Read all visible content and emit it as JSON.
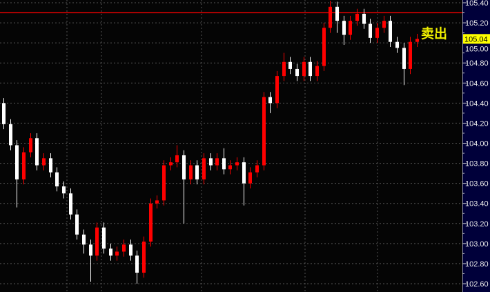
{
  "chart_data": {
    "type": "candlestick",
    "title": "",
    "xlabel": "",
    "ylabel": "",
    "ylim": [
      102.6,
      105.4
    ],
    "yticks": [
      "102.60",
      "102.80",
      "103.00",
      "103.20",
      "103.40",
      "103.60",
      "103.80",
      "104.00",
      "104.20",
      "104.40",
      "104.60",
      "104.80",
      "105.00",
      "105.20",
      "105.40"
    ],
    "grid": true,
    "colors": {
      "up": "#ff0000",
      "down": "#ffffff",
      "background": "#050505",
      "axis_panel": "#00003a",
      "grid": "#555555",
      "level_line": "#ff0000",
      "price_tag": "#ffff00",
      "signal_text": "#f0f000"
    },
    "level_line": 105.3,
    "last_price": "105.04",
    "signal_label": "卖出",
    "candles_ohlc": [
      [
        104.4,
        104.45,
        104.14,
        104.19
      ],
      [
        104.19,
        104.24,
        103.93,
        103.98
      ],
      [
        103.98,
        104.03,
        103.36,
        103.64
      ],
      [
        103.64,
        103.96,
        103.59,
        103.91
      ],
      [
        103.91,
        104.1,
        103.86,
        104.05
      ],
      [
        104.05,
        104.1,
        103.73,
        103.78
      ],
      [
        103.78,
        103.9,
        103.73,
        103.85
      ],
      [
        103.85,
        103.9,
        103.66,
        103.71
      ],
      [
        103.71,
        103.76,
        103.52,
        103.57
      ],
      [
        103.57,
        103.62,
        103.45,
        103.5
      ],
      [
        103.5,
        103.55,
        103.24,
        103.29
      ],
      [
        103.29,
        103.34,
        103.04,
        103.09
      ],
      [
        103.09,
        103.14,
        102.9,
        102.99
      ],
      [
        102.99,
        103.04,
        102.62,
        102.88
      ],
      [
        102.88,
        103.21,
        102.83,
        103.16
      ],
      [
        103.16,
        103.21,
        102.9,
        102.95
      ],
      [
        102.95,
        103.0,
        102.83,
        102.88
      ],
      [
        102.88,
        102.97,
        102.83,
        102.92
      ],
      [
        102.92,
        103.04,
        102.87,
        102.99
      ],
      [
        102.99,
        103.04,
        102.83,
        102.88
      ],
      [
        102.88,
        102.93,
        102.6,
        102.71
      ],
      [
        102.71,
        103.07,
        102.66,
        103.02
      ],
      [
        103.02,
        103.45,
        102.97,
        103.4
      ],
      [
        103.4,
        103.48,
        103.35,
        103.43
      ],
      [
        103.43,
        103.83,
        103.38,
        103.78
      ],
      [
        103.78,
        103.86,
        103.73,
        103.81
      ],
      [
        103.81,
        103.98,
        103.76,
        103.88
      ],
      [
        103.88,
        103.93,
        103.2,
        103.64
      ],
      [
        103.64,
        103.83,
        103.59,
        103.78
      ],
      [
        103.78,
        103.83,
        103.59,
        103.64
      ],
      [
        103.64,
        103.9,
        103.59,
        103.85
      ],
      [
        103.85,
        103.9,
        103.73,
        103.78
      ],
      [
        103.78,
        103.9,
        103.73,
        103.85
      ],
      [
        103.85,
        103.95,
        103.69,
        103.74
      ],
      [
        103.74,
        103.83,
        103.69,
        103.78
      ],
      [
        103.78,
        103.86,
        103.73,
        103.81
      ],
      [
        103.81,
        103.86,
        103.38,
        103.6
      ],
      [
        103.6,
        103.76,
        103.55,
        103.71
      ],
      [
        103.71,
        103.83,
        103.66,
        103.78
      ],
      [
        103.78,
        104.51,
        103.73,
        104.46
      ],
      [
        104.46,
        104.51,
        104.3,
        104.4
      ],
      [
        104.4,
        104.72,
        104.35,
        104.67
      ],
      [
        104.67,
        104.9,
        104.62,
        104.81
      ],
      [
        104.81,
        104.86,
        104.69,
        104.74
      ],
      [
        104.74,
        104.79,
        104.62,
        104.67
      ],
      [
        104.67,
        104.86,
        104.62,
        104.81
      ],
      [
        104.81,
        104.86,
        104.62,
        104.67
      ],
      [
        104.67,
        104.82,
        104.62,
        104.77
      ],
      [
        104.77,
        105.2,
        104.72,
        105.15
      ],
      [
        105.15,
        105.42,
        105.1,
        105.36
      ],
      [
        105.36,
        105.41,
        105.1,
        105.22
      ],
      [
        105.22,
        105.27,
        104.98,
        105.08
      ],
      [
        105.08,
        105.27,
        105.03,
        105.22
      ],
      [
        105.22,
        105.34,
        105.17,
        105.29
      ],
      [
        105.29,
        105.34,
        105.14,
        105.19
      ],
      [
        105.19,
        105.24,
        105.0,
        105.05
      ],
      [
        105.05,
        105.2,
        105.0,
        105.15
      ],
      [
        105.15,
        105.27,
        105.1,
        105.22
      ],
      [
        105.22,
        105.27,
        104.96,
        105.01
      ],
      [
        105.01,
        105.06,
        104.9,
        104.95
      ],
      [
        104.95,
        105.0,
        104.58,
        104.74
      ],
      [
        104.74,
        105.06,
        104.69,
        105.01
      ],
      [
        105.01,
        105.09,
        104.96,
        105.04
      ]
    ]
  }
}
